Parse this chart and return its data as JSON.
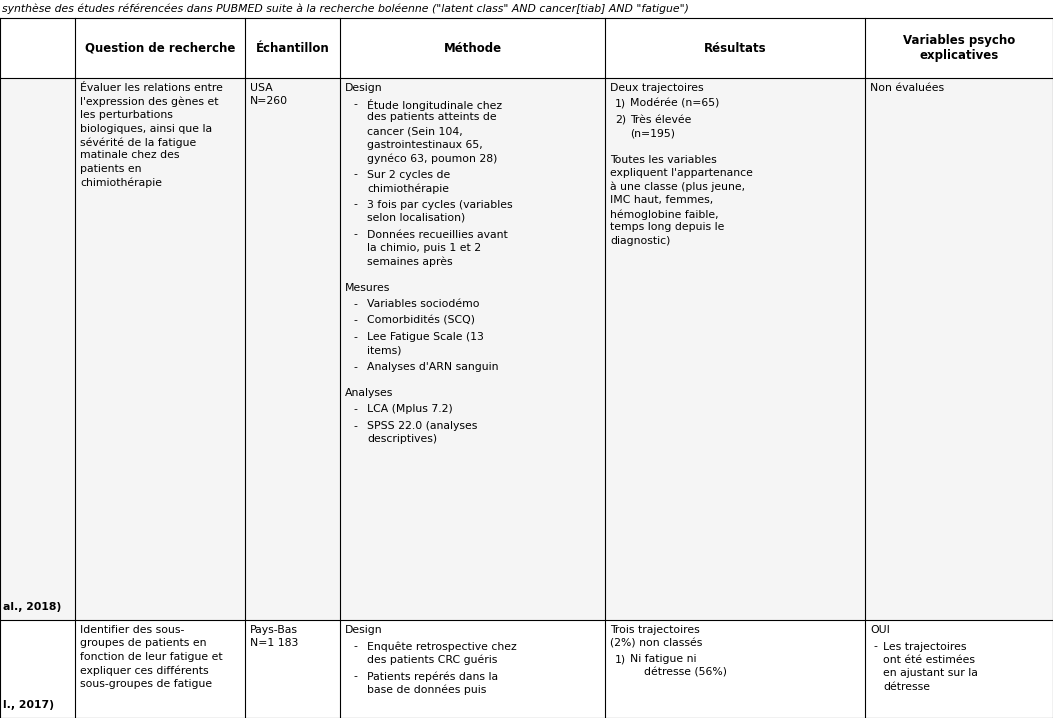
{
  "title": "synthèse des études référencées dans PUBMED suite à la recherche boléenne (\"latent class\" AND cancer[tiab] AND \"fatigue\")",
  "headers": [
    "Question de recherche",
    "Échantillon",
    "Méthode",
    "Résultats",
    "Variables psycho\nexplicatives"
  ],
  "font_size": 7.8,
  "header_font_size": 8.5,
  "title_font_size": 7.8,
  "bg_color_row1": "#f0f0f0",
  "bg_color_row2": "#f8f8f8",
  "text_color": "#000000",
  "line_color": "#000000"
}
